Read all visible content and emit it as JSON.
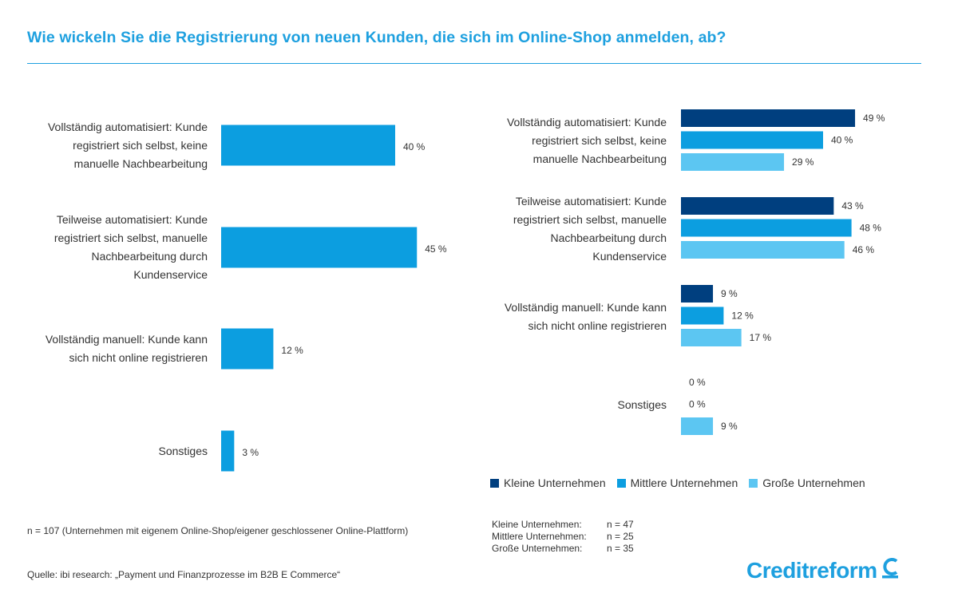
{
  "title": "Wie wickeln Sie die Registrierung von neuen Kunden, die sich im Online-Shop anmelden, ab?",
  "colors": {
    "accent": "#1ea0df",
    "kleine": "#003f7f",
    "mittlere": "#0c9ee0",
    "grosse": "#5cc6f2"
  },
  "chart_data": [
    {
      "type": "bar",
      "orientation": "horizontal",
      "categories": [
        "Vollständig automatisiert: Kunde registriert sich selbst, keine manuelle Nachbearbeitung",
        "Teilweise automatisiert: Kunde registriert sich selbst, manuelle Nachbearbeitung durch Kundenservice",
        "Vollständig manuell: Kunde kann sich nicht online registrieren",
        "Sonstiges"
      ],
      "category_lines": [
        [
          "Vollständig automatisiert: Kunde",
          "registriert sich selbst, keine",
          "manuelle Nachbearbeitung"
        ],
        [
          "Teilweise automatisiert: Kunde",
          "registriert sich selbst, manuelle",
          "Nachbearbeitung durch",
          "Kundenservice"
        ],
        [
          "Vollständig manuell: Kunde kann",
          "sich nicht online registrieren"
        ],
        [
          "Sonstiges"
        ]
      ],
      "values": [
        40,
        45,
        12,
        3
      ],
      "value_labels": [
        "40 %",
        "45 %",
        "12 %",
        "3 %"
      ],
      "unit": "%"
    },
    {
      "type": "bar",
      "orientation": "horizontal",
      "categories": [
        "Vollständig automatisiert: Kunde registriert sich selbst, keine manuelle Nachbearbeitung",
        "Teilweise automatisiert: Kunde registriert sich selbst, manuelle Nachbearbeitung durch Kundenservice",
        "Vollständig manuell: Kunde kann sich nicht online registrieren",
        "Sonstiges"
      ],
      "category_lines": [
        [
          "Vollständig automatisiert: Kunde",
          "registriert sich selbst, keine",
          "manuelle Nachbearbeitung"
        ],
        [
          "Teilweise automatisiert: Kunde",
          "registriert sich selbst, manuelle",
          "Nachbearbeitung durch",
          "Kundenservice"
        ],
        [
          "Vollständig manuell: Kunde kann",
          "sich nicht online registrieren"
        ],
        [
          "Sonstiges"
        ]
      ],
      "series": [
        {
          "name": "Kleine Unternehmen",
          "values": [
            49,
            43,
            9,
            0
          ],
          "value_labels": [
            "49 %",
            "43 %",
            "9 %",
            "0 %"
          ]
        },
        {
          "name": "Mittlere Unternehmen",
          "values": [
            40,
            48,
            12,
            0
          ],
          "value_labels": [
            "40 %",
            "48 %",
            "12 %",
            "0 %"
          ]
        },
        {
          "name": "Große Unternehmen",
          "values": [
            29,
            46,
            17,
            9
          ],
          "value_labels": [
            "29 %",
            "46 %",
            "17 %",
            "9 %"
          ]
        }
      ],
      "legend_position": "bottom",
      "unit": "%"
    }
  ],
  "legend": [
    {
      "label": "Kleine Unternehmen",
      "color": "#003f7f"
    },
    {
      "label": "Mittlere Unternehmen",
      "color": "#0c9ee0"
    },
    {
      "label": "Große Unternehmen",
      "color": "#5cc6f2"
    }
  ],
  "note": "n = 107 (Unternehmen mit eigenem Online-Shop/eigener geschlossener Online-Plattform)",
  "sample_sizes": [
    {
      "name": "Kleine Unternehmen:",
      "n": "n = 47"
    },
    {
      "name": "Mittlere Unternehmen:",
      "n": "n = 25"
    },
    {
      "name": "Große Unternehmen:",
      "n": "n = 35"
    }
  ],
  "source": "Quelle: ibi research: „Payment und Finanzprozesse im B2B E Commerce“",
  "logo": {
    "text": "Creditreform",
    "icon": "creditreform-c-icon"
  }
}
